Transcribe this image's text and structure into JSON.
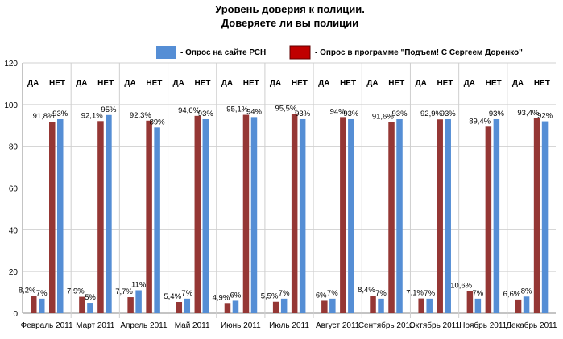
{
  "chart_data": {
    "type": "bar",
    "title": [
      "Уровень доверия к полиции.",
      "Доверяете ли вы полиции"
    ],
    "ylim": [
      0,
      120
    ],
    "yticks": [
      0,
      20,
      40,
      60,
      80,
      100,
      120
    ],
    "grid": true,
    "legend_position": "top",
    "group_headers": [
      "ДА",
      "НЕТ"
    ],
    "categories": [
      "Февраль 2011",
      "Март 2011",
      "Апрель 2011",
      "Май 2011",
      "Июнь 2011",
      "Июль 2011",
      "Август 2011",
      "Сентябрь 2011",
      "Октябрь 2011",
      "Ноябрь 2011",
      "Декабрь 2011"
    ],
    "series": [
      {
        "name": "- Опрос в программе \"Подъем! С Сергеем Доренко\"",
        "color": "#953735",
        "yes": [
          8.2,
          7.9,
          7.7,
          5.4,
          4.9,
          5.5,
          6,
          8.4,
          7.1,
          10.6,
          6.6
        ],
        "no": [
          91.8,
          92.1,
          92.3,
          94.6,
          95.1,
          95.5,
          94,
          91.6,
          92.9,
          89.4,
          93.4
        ],
        "yes_labels": [
          "8,2%",
          "7,9%",
          "7,7%",
          "5,4%",
          "4,9%",
          "5,5%",
          "6%",
          "8,4%",
          "7,1%",
          "10,6%",
          "6,6%"
        ],
        "no_labels": [
          "91,8%",
          "92,1%",
          "92,3%",
          "94,6%",
          "95,1%",
          "95,5%",
          "94%",
          "91,6%",
          "92,9%",
          "89,4%",
          "93,4%"
        ]
      },
      {
        "name": "- Опрос на сайте РСН",
        "color": "#558ed5",
        "yes": [
          7,
          5,
          11,
          7,
          6,
          7,
          7,
          7,
          7,
          7,
          8
        ],
        "no": [
          93,
          95,
          89,
          93,
          94,
          93,
          93,
          93,
          93,
          93,
          92
        ],
        "yes_labels": [
          "7%",
          "5%",
          "11%",
          "7%",
          "6%",
          "7%",
          "7%",
          "7%",
          "7%",
          "7%",
          "8%"
        ],
        "no_labels": [
          "93%",
          "95%",
          "89%",
          "93%",
          "94%",
          "93%",
          "93%",
          "93%",
          "93%",
          "93%",
          "92%"
        ]
      }
    ]
  }
}
